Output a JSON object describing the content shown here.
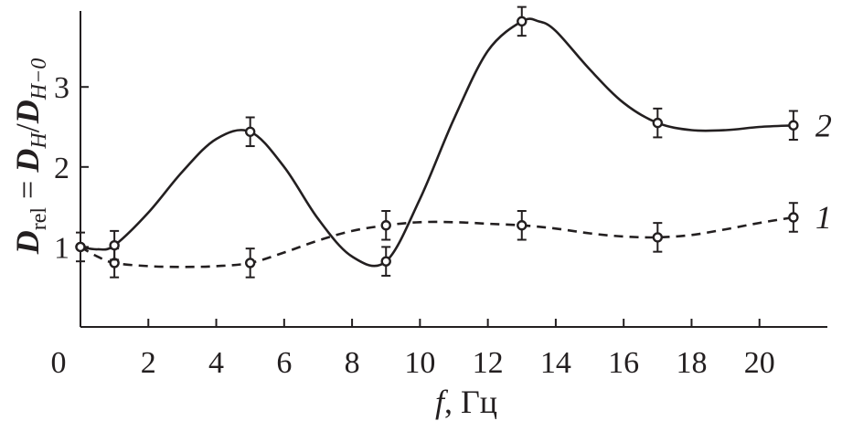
{
  "chart_data": {
    "type": "line",
    "xlabel_var": "f",
    "xlabel_unit": ", Гц",
    "ylabel": {
      "D1": "D",
      "sub1": "rel",
      "eq": " = ",
      "D2": "D",
      "sub2": "H",
      "slash": "/",
      "D3": "D",
      "sub3": "H−0"
    },
    "xlim": [
      0,
      22
    ],
    "ylim": [
      0,
      3.95
    ],
    "xticks": [
      0,
      2,
      4,
      6,
      8,
      10,
      12,
      14,
      16,
      18,
      20
    ],
    "yticks": [
      1,
      2,
      3
    ],
    "series": [
      {
        "name": "1",
        "style": "dashed",
        "points": [
          {
            "x": 0,
            "y": 1.0,
            "err": 0.0
          },
          {
            "x": 1,
            "y": 0.8,
            "err": 0.18
          },
          {
            "x": 5,
            "y": 0.8,
            "err": 0.18
          },
          {
            "x": 9,
            "y": 1.27,
            "err": 0.18
          },
          {
            "x": 13,
            "y": 1.27,
            "err": 0.18
          },
          {
            "x": 17,
            "y": 1.12,
            "err": 0.18
          },
          {
            "x": 21,
            "y": 1.37,
            "err": 0.18
          }
        ],
        "curve": [
          [
            0,
            1.0
          ],
          [
            0.5,
            0.88
          ],
          [
            1,
            0.8
          ],
          [
            2,
            0.76
          ],
          [
            3,
            0.75
          ],
          [
            4,
            0.76
          ],
          [
            5,
            0.8
          ],
          [
            6,
            0.93
          ],
          [
            7,
            1.08
          ],
          [
            8,
            1.2
          ],
          [
            9,
            1.27
          ],
          [
            10,
            1.31
          ],
          [
            11,
            1.31
          ],
          [
            12,
            1.29
          ],
          [
            13,
            1.27
          ],
          [
            14,
            1.23
          ],
          [
            15,
            1.17
          ],
          [
            16,
            1.13
          ],
          [
            17,
            1.12
          ],
          [
            18,
            1.15
          ],
          [
            19,
            1.22
          ],
          [
            20,
            1.3
          ],
          [
            21,
            1.37
          ]
        ]
      },
      {
        "name": "2",
        "style": "solid",
        "points": [
          {
            "x": 0,
            "y": 1.0,
            "err": 0.18
          },
          {
            "x": 1,
            "y": 1.02,
            "err": 0.18
          },
          {
            "x": 5,
            "y": 2.44,
            "err": 0.18
          },
          {
            "x": 9,
            "y": 0.82,
            "err": 0.18
          },
          {
            "x": 13,
            "y": 3.82,
            "err": 0.18
          },
          {
            "x": 17,
            "y": 2.55,
            "err": 0.18
          },
          {
            "x": 21,
            "y": 2.52,
            "err": 0.18
          }
        ],
        "curve": [
          [
            0,
            1.0
          ],
          [
            0.5,
            0.97
          ],
          [
            1,
            1.02
          ],
          [
            2,
            1.43
          ],
          [
            3,
            1.94
          ],
          [
            4,
            2.35
          ],
          [
            5,
            2.44
          ],
          [
            6,
            2.0
          ],
          [
            7,
            1.35
          ],
          [
            8,
            0.88
          ],
          [
            9,
            0.82
          ],
          [
            10,
            1.6
          ],
          [
            11,
            2.6
          ],
          [
            12,
            3.45
          ],
          [
            13,
            3.82
          ],
          [
            13.5,
            3.82
          ],
          [
            14,
            3.7
          ],
          [
            15,
            3.22
          ],
          [
            16,
            2.8
          ],
          [
            17,
            2.55
          ],
          [
            18,
            2.46
          ],
          [
            19,
            2.46
          ],
          [
            20,
            2.5
          ],
          [
            21,
            2.52
          ]
        ]
      }
    ]
  }
}
